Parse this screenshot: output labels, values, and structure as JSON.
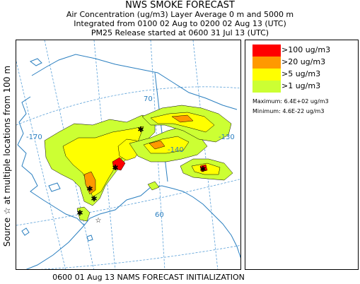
{
  "title": "NWS SMOKE FORECAST",
  "header_lines": [
    "Air Concentration (ug/m3) Layer Average    0 m and  5000 m",
    "Integrated from 0100 02 Aug to 0200 02 Aug 13 (UTC)",
    "PM25 Release started at 0600 31 Jul 13 (UTC)"
  ],
  "vertical_label": "Source ☆   at multiple locations   from   100 m",
  "footer": "0600 01 Aug 13 NAMS FORECAST INITIALIZATION",
  "legend": {
    "items": [
      {
        "label": ">100 ug/m3",
        "color": "#ff0000"
      },
      {
        "label": ">20 ug/m3",
        "color": "#ff9900"
      },
      {
        "label": ">5 ug/m3",
        "color": "#ffff00"
      },
      {
        "label": ">1 ug/m3",
        "color": "#ccff33"
      }
    ],
    "maximum": "Maximum: 6.4E+02 ug/m3",
    "minimum": "Minimum: 4.6E-22 ug/m3"
  },
  "map": {
    "grid_labels": [
      "70",
      "-170",
      "-130",
      "-140",
      "60"
    ],
    "colors": {
      "land": "#2a7fc0",
      "grid": "#5aa0d8",
      "lowest": "#ccff33",
      "low": "#ffff00",
      "mid": "#ff9900",
      "high": "#ff0000",
      "contour": "#000000",
      "source": "#000000"
    },
    "source_marker": "star-icon"
  }
}
